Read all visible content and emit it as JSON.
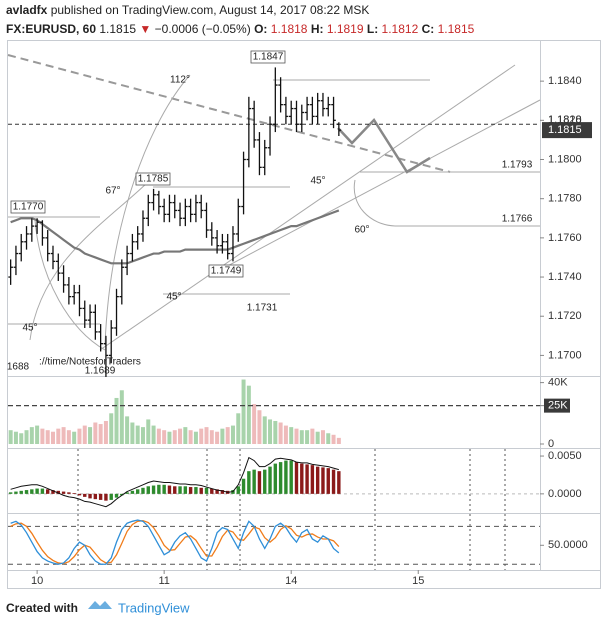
{
  "header": {
    "author": "avladfx",
    "published": "published on TradingView.com, August 14, 2017 08:22 MSK",
    "symbol": "FX:EURUSD, 60",
    "price": "1.1815",
    "arrow": "▼",
    "change": "−0.0006 (−0.05%)",
    "ohlc": [
      {
        "label": "O:",
        "value": "1.1818"
      },
      {
        "label": "H:",
        "value": "1.1819"
      },
      {
        "label": "L:",
        "value": "1.1812"
      },
      {
        "label": "C:",
        "value": "1.1815"
      }
    ]
  },
  "footer": {
    "created": "Created with",
    "brand": "TradingView"
  },
  "chart_data": [
    {
      "type": "ohlc",
      "color": "#111111",
      "ma_color": "#777777",
      "xlim": [
        -0.5,
        100
      ],
      "xticks": [
        {
          "value": 5,
          "label": "10"
        },
        {
          "value": 29,
          "label": "11"
        },
        {
          "value": 53,
          "label": "14"
        },
        {
          "value": 77,
          "label": "15"
        }
      ],
      "ylim": [
        1.169,
        1.1861
      ],
      "yticks": [
        {
          "value": 1.17,
          "label": "1.1700"
        },
        {
          "value": 1.172,
          "label": "1.1720"
        },
        {
          "value": 1.174,
          "label": "1.1740"
        },
        {
          "value": 1.176,
          "label": "1.1760"
        },
        {
          "value": 1.178,
          "label": "1.1780"
        },
        {
          "value": 1.18,
          "label": "1.1800"
        },
        {
          "value": 1.182,
          "label": "1.1820"
        },
        {
          "value": 1.184,
          "label": "1.1840"
        }
      ],
      "price_line": 1.1818,
      "last_price": 1.1815,
      "open": [
        1.174,
        1.1745,
        1.1752,
        1.1758,
        1.1762,
        1.1766,
        1.1768,
        1.176,
        1.1752,
        1.1748,
        1.1742,
        1.1736,
        1.173,
        1.1732,
        1.1724,
        1.1718,
        1.1722,
        1.1712,
        1.1706,
        1.17,
        1.1714,
        1.173,
        1.1745,
        1.1752,
        1.1758,
        1.1762,
        1.177,
        1.1778,
        1.1782,
        1.1776,
        1.1772,
        1.1778,
        1.1774,
        1.177,
        1.1776,
        1.1772,
        1.1778,
        1.1774,
        1.1764,
        1.176,
        1.1756,
        1.1758,
        1.1752,
        1.1762,
        1.1776,
        1.18,
        1.1826,
        1.181,
        1.1796,
        1.1806,
        1.1818,
        1.1838,
        1.1828,
        1.1822,
        1.1826,
        1.1818,
        1.1824,
        1.1828,
        1.1822,
        1.183,
        1.1826,
        1.1828,
        1.1818
      ],
      "high": [
        1.1749,
        1.1756,
        1.1762,
        1.1766,
        1.177,
        1.177,
        1.1769,
        1.1764,
        1.1756,
        1.1752,
        1.1746,
        1.174,
        1.1736,
        1.1736,
        1.1728,
        1.1726,
        1.1726,
        1.1716,
        1.171,
        1.1718,
        1.1734,
        1.1749,
        1.1756,
        1.1762,
        1.1766,
        1.1774,
        1.1782,
        1.1785,
        1.1784,
        1.178,
        1.1782,
        1.1782,
        1.1778,
        1.178,
        1.178,
        1.1782,
        1.1782,
        1.1778,
        1.1768,
        1.1764,
        1.1762,
        1.1762,
        1.1766,
        1.178,
        1.1804,
        1.1832,
        1.183,
        1.1814,
        1.181,
        1.1822,
        1.1847,
        1.1842,
        1.1832,
        1.183,
        1.183,
        1.1828,
        1.1832,
        1.1832,
        1.1834,
        1.1834,
        1.1832,
        1.1832,
        1.1819
      ],
      "low": [
        1.1736,
        1.1741,
        1.1748,
        1.1754,
        1.1758,
        1.1762,
        1.1756,
        1.1748,
        1.1744,
        1.1738,
        1.1732,
        1.1726,
        1.1726,
        1.172,
        1.1714,
        1.1714,
        1.1708,
        1.1702,
        1.1689,
        1.1696,
        1.171,
        1.1726,
        1.1741,
        1.1748,
        1.1754,
        1.1758,
        1.1766,
        1.1774,
        1.1772,
        1.1768,
        1.1768,
        1.177,
        1.1766,
        1.1766,
        1.1768,
        1.1768,
        1.177,
        1.176,
        1.1756,
        1.1752,
        1.1752,
        1.1749,
        1.1748,
        1.1758,
        1.1772,
        1.1796,
        1.1806,
        1.1792,
        1.1792,
        1.1802,
        1.1814,
        1.1824,
        1.1818,
        1.1818,
        1.1814,
        1.1814,
        1.182,
        1.1818,
        1.1818,
        1.1822,
        1.1822,
        1.1816,
        1.1812
      ],
      "close": [
        1.1745,
        1.1752,
        1.1758,
        1.1762,
        1.1766,
        1.1768,
        1.176,
        1.1752,
        1.1748,
        1.1742,
        1.1736,
        1.173,
        1.1732,
        1.1724,
        1.1718,
        1.1722,
        1.1712,
        1.1706,
        1.17,
        1.1714,
        1.173,
        1.1745,
        1.1752,
        1.1758,
        1.1762,
        1.177,
        1.1778,
        1.1782,
        1.1776,
        1.1772,
        1.1778,
        1.1774,
        1.177,
        1.1776,
        1.1772,
        1.1778,
        1.1774,
        1.1764,
        1.176,
        1.1756,
        1.1758,
        1.1752,
        1.1762,
        1.1776,
        1.18,
        1.1826,
        1.181,
        1.1796,
        1.1806,
        1.1818,
        1.1838,
        1.1828,
        1.1822,
        1.1826,
        1.1818,
        1.1824,
        1.1828,
        1.1822,
        1.183,
        1.1826,
        1.1828,
        1.182,
        1.1815
      ],
      "ma": [
        1.1768,
        1.1769,
        1.177,
        1.177,
        1.177,
        1.1769,
        1.1767,
        1.1765,
        1.1763,
        1.1761,
        1.1759,
        1.1757,
        1.1755,
        1.1754,
        1.1752,
        1.1751,
        1.175,
        1.1749,
        1.1748,
        1.1747,
        1.1747,
        1.1747,
        1.1747,
        1.1748,
        1.1749,
        1.175,
        1.1751,
        1.1752,
        1.1752,
        1.1753,
        1.1753,
        1.1753,
        1.1753,
        1.1754,
        1.1754,
        1.1754,
        1.1754,
        1.1754,
        1.1754,
        1.1754,
        1.1754,
        1.1754,
        1.1755,
        1.1756,
        1.1757,
        1.1758,
        1.1759,
        1.176,
        1.1761,
        1.1762,
        1.1763,
        1.1764,
        1.1765,
        1.1766,
        1.1766,
        1.1767,
        1.1768,
        1.1769,
        1.177,
        1.1771,
        1.1772,
        1.1773,
        1.1774
      ],
      "annotations": [
        "1.1847",
        "112°",
        "1.1785",
        "67°",
        "1.1770",
        "1.1749",
        "45°",
        "1.1731",
        "45°",
        "1.1689",
        "1688",
        "://time/NotesforTraders",
        "45°",
        "1.1793",
        "1.1766",
        "60°"
      ]
    },
    {
      "type": "volume",
      "up_color": "#8bc48f",
      "down_color": "#e8a3a3",
      "ylim": [
        0,
        43000
      ],
      "yticks": [
        0,
        {
          "value": 25000,
          "label": "25K"
        },
        {
          "value": 40000,
          "label": "40K"
        }
      ],
      "values": [
        9000,
        8000,
        7000,
        9000,
        11000,
        12000,
        10000,
        9000,
        8000,
        10000,
        11000,
        9000,
        8000,
        10000,
        12000,
        11000,
        14000,
        13000,
        15000,
        20000,
        30000,
        35000,
        18000,
        14000,
        12000,
        11000,
        16000,
        12000,
        10000,
        9000,
        8000,
        9000,
        10000,
        11000,
        9000,
        8000,
        10000,
        11000,
        9000,
        8000,
        10000,
        11000,
        12000,
        20000,
        42000,
        38000,
        26000,
        22000,
        18000,
        16000,
        15000,
        14000,
        12000,
        11000,
        10000,
        9000,
        9000,
        10000,
        8000,
        9000,
        7000,
        6000,
        4000
      ]
    },
    {
      "type": "macd",
      "up_color": "#2e8b2e",
      "down_color": "#8b1a1a",
      "line_color": "#111111",
      "ylim": [
        -0.0024,
        0.0058
      ],
      "yticks": [
        {
          "value": 0,
          "label": "0.0000"
        },
        {
          "value": 0.005,
          "label": "0.0050"
        }
      ],
      "histogram": [
        0.0002,
        0.0003,
        0.0004,
        0.0005,
        0.0006,
        0.0007,
        0.0007,
        0.0006,
        0.0005,
        0.0004,
        0.0003,
        0.0002,
        0.0001,
        -0.0002,
        -0.0004,
        -0.0006,
        -0.0007,
        -0.0008,
        -0.0009,
        -0.0008,
        -0.0005,
        -0.0002,
        0.0002,
        0.0004,
        0.0006,
        0.0008,
        0.001,
        0.0011,
        0.0012,
        0.0012,
        0.0011,
        0.001,
        0.001,
        0.001,
        0.0009,
        0.0009,
        0.0008,
        0.0008,
        0.0007,
        0.0006,
        0.0005,
        0.0004,
        0.0005,
        0.001,
        0.002,
        0.003,
        0.0032,
        0.003,
        0.0032,
        0.0036,
        0.004,
        0.0042,
        0.0044,
        0.0044,
        0.0042,
        0.004,
        0.0039,
        0.0038,
        0.0036,
        0.0035,
        0.0034,
        0.0032,
        0.003
      ],
      "macd": [
        0.0006,
        0.0008,
        0.001,
        0.0011,
        0.0012,
        0.0012,
        0.001,
        0.0007,
        0.0004,
        0.0001,
        -0.0002,
        -0.0004,
        -0.0005,
        -0.0007,
        -0.001,
        -0.0011,
        -0.0013,
        -0.0015,
        -0.0017,
        -0.0013,
        -0.0007,
        -0.0002,
        0.0003,
        0.0006,
        0.0009,
        0.0012,
        0.0015,
        0.0017,
        0.0016,
        0.0015,
        0.0015,
        0.0014,
        0.0013,
        0.0013,
        0.0012,
        0.0012,
        0.0011,
        0.0009,
        0.0007,
        0.0005,
        0.0004,
        0.0002,
        0.0003,
        0.0012,
        0.0028,
        0.0048,
        0.0044,
        0.0036,
        0.0036,
        0.004,
        0.0046,
        0.0047,
        0.0046,
        0.0045,
        0.0042,
        0.0041,
        0.0041,
        0.0039,
        0.0038,
        0.0037,
        0.0036,
        0.0034,
        0.0032
      ]
    },
    {
      "type": "stochastic",
      "k_color": "#2f8fd8",
      "d_color": "#f07c1a",
      "ylim": [
        14,
        98
      ],
      "yticks": [
        {
          "value": 50,
          "label": "50.0000"
        }
      ],
      "bands": [
        80,
        20
      ],
      "k": [
        85,
        88,
        82,
        70,
        55,
        40,
        30,
        25,
        22,
        20,
        22,
        30,
        45,
        55,
        50,
        35,
        25,
        20,
        20,
        30,
        55,
        75,
        85,
        88,
        90,
        88,
        80,
        65,
        50,
        35,
        40,
        55,
        65,
        70,
        60,
        45,
        30,
        25,
        45,
        70,
        78,
        75,
        60,
        45,
        70,
        88,
        80,
        60,
        45,
        60,
        80,
        85,
        78,
        65,
        55,
        70,
        75,
        60,
        55,
        65,
        60,
        45,
        38
      ],
      "d": [
        80,
        84,
        85,
        80,
        69,
        55,
        42,
        32,
        26,
        22,
        21,
        24,
        32,
        43,
        50,
        47,
        37,
        27,
        22,
        23,
        35,
        53,
        72,
        83,
        88,
        89,
        86,
        78,
        65,
        50,
        42,
        43,
        53,
        63,
        65,
        58,
        45,
        33,
        33,
        47,
        64,
        74,
        71,
        60,
        58,
        68,
        79,
        76,
        62,
        55,
        62,
        75,
        81,
        76,
        66,
        63,
        67,
        68,
        63,
        60,
        60,
        57,
        48
      ]
    }
  ]
}
